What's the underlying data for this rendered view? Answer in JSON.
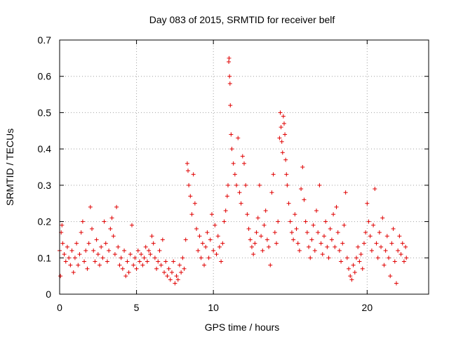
{
  "chart_data": {
    "type": "scatter",
    "title": "Day 083 of 2015, SRMTID for receiver belf",
    "xlabel": "GPS time / hours",
    "ylabel": "SRMTID / TECUs",
    "xlim": [
      0,
      24
    ],
    "ylim": [
      0,
      0.7
    ],
    "xticks": [
      0,
      5,
      10,
      20
    ],
    "xtick_labels": [
      "0",
      "5",
      "10",
      "20"
    ],
    "yticks": [
      0,
      0.1,
      0.2,
      0.3,
      0.4,
      0.5,
      0.6,
      0.7
    ],
    "ytick_labels": [
      "0",
      "0.1",
      "0.2",
      "0.3",
      "0.4",
      "0.5",
      "0.6",
      "0.7"
    ],
    "grid": true,
    "marker": "+",
    "color": "#e00000",
    "series": [
      {
        "name": "SRMTID",
        "points": [
          [
            0.0,
            0.12
          ],
          [
            0.05,
            0.05
          ],
          [
            0.1,
            0.17
          ],
          [
            0.15,
            0.19
          ],
          [
            0.2,
            0.14
          ],
          [
            0.3,
            0.11
          ],
          [
            0.4,
            0.09
          ],
          [
            0.5,
            0.13
          ],
          [
            0.6,
            0.1
          ],
          [
            0.7,
            0.08
          ],
          [
            0.8,
            0.12
          ],
          [
            0.9,
            0.06
          ],
          [
            1.0,
            0.1
          ],
          [
            1.1,
            0.14
          ],
          [
            1.2,
            0.08
          ],
          [
            1.3,
            0.11
          ],
          [
            1.4,
            0.17
          ],
          [
            1.5,
            0.2
          ],
          [
            1.6,
            0.09
          ],
          [
            1.7,
            0.12
          ],
          [
            1.8,
            0.07
          ],
          [
            1.9,
            0.14
          ],
          [
            2.0,
            0.24
          ],
          [
            2.1,
            0.18
          ],
          [
            2.2,
            0.12
          ],
          [
            2.3,
            0.09
          ],
          [
            2.4,
            0.15
          ],
          [
            2.5,
            0.11
          ],
          [
            2.6,
            0.08
          ],
          [
            2.7,
            0.13
          ],
          [
            2.8,
            0.1
          ],
          [
            2.9,
            0.2
          ],
          [
            3.0,
            0.14
          ],
          [
            3.1,
            0.09
          ],
          [
            3.2,
            0.12
          ],
          [
            3.3,
            0.18
          ],
          [
            3.4,
            0.21
          ],
          [
            3.5,
            0.16
          ],
          [
            3.6,
            0.11
          ],
          [
            3.7,
            0.24
          ],
          [
            3.8,
            0.13
          ],
          [
            3.9,
            0.08
          ],
          [
            4.0,
            0.1
          ],
          [
            4.1,
            0.07
          ],
          [
            4.2,
            0.12
          ],
          [
            4.3,
            0.05
          ],
          [
            4.4,
            0.09
          ],
          [
            4.5,
            0.06
          ],
          [
            4.6,
            0.11
          ],
          [
            4.7,
            0.19
          ],
          [
            4.8,
            0.08
          ],
          [
            4.9,
            0.1
          ],
          [
            5.0,
            0.07
          ],
          [
            5.1,
            0.12
          ],
          [
            5.2,
            0.09
          ],
          [
            5.3,
            0.11
          ],
          [
            5.4,
            0.08
          ],
          [
            5.5,
            0.1
          ],
          [
            5.6,
            0.13
          ],
          [
            5.7,
            0.09
          ],
          [
            5.8,
            0.12
          ],
          [
            5.9,
            0.11
          ],
          [
            6.0,
            0.16
          ],
          [
            6.1,
            0.14
          ],
          [
            6.2,
            0.1
          ],
          [
            6.3,
            0.07
          ],
          [
            6.4,
            0.09
          ],
          [
            6.5,
            0.12
          ],
          [
            6.6,
            0.08
          ],
          [
            6.7,
            0.15
          ],
          [
            6.8,
            0.06
          ],
          [
            6.9,
            0.09
          ],
          [
            7.0,
            0.05
          ],
          [
            7.1,
            0.07
          ],
          [
            7.2,
            0.04
          ],
          [
            7.3,
            0.06
          ],
          [
            7.4,
            0.09
          ],
          [
            7.5,
            0.03
          ],
          [
            7.6,
            0.05
          ],
          [
            7.7,
            0.04
          ],
          [
            7.8,
            0.08
          ],
          [
            7.9,
            0.06
          ],
          [
            8.0,
            0.1
          ],
          [
            8.1,
            0.07
          ],
          [
            8.2,
            0.15
          ],
          [
            8.3,
            0.36
          ],
          [
            8.35,
            0.34
          ],
          [
            8.4,
            0.3
          ],
          [
            8.5,
            0.27
          ],
          [
            8.6,
            0.22
          ],
          [
            8.7,
            0.33
          ],
          [
            8.8,
            0.25
          ],
          [
            8.9,
            0.18
          ],
          [
            9.0,
            0.12
          ],
          [
            9.1,
            0.16
          ],
          [
            9.2,
            0.1
          ],
          [
            9.3,
            0.14
          ],
          [
            9.4,
            0.08
          ],
          [
            9.5,
            0.13
          ],
          [
            9.6,
            0.17
          ],
          [
            9.7,
            0.1
          ],
          [
            9.8,
            0.15
          ],
          [
            9.9,
            0.22
          ],
          [
            10.0,
            0.12
          ],
          [
            10.1,
            0.19
          ],
          [
            10.2,
            0.11
          ],
          [
            10.3,
            0.16
          ],
          [
            10.4,
            0.13
          ],
          [
            10.5,
            0.09
          ],
          [
            10.6,
            0.14
          ],
          [
            10.7,
            0.2
          ],
          [
            10.8,
            0.23
          ],
          [
            10.9,
            0.27
          ],
          [
            10.95,
            0.3
          ],
          [
            11.0,
            0.64
          ],
          [
            11.02,
            0.65
          ],
          [
            11.05,
            0.6
          ],
          [
            11.08,
            0.58
          ],
          [
            11.1,
            0.52
          ],
          [
            11.15,
            0.44
          ],
          [
            11.2,
            0.4
          ],
          [
            11.3,
            0.36
          ],
          [
            11.4,
            0.33
          ],
          [
            11.5,
            0.3
          ],
          [
            11.6,
            0.43
          ],
          [
            11.7,
            0.28
          ],
          [
            11.8,
            0.25
          ],
          [
            11.9,
            0.38
          ],
          [
            12.0,
            0.36
          ],
          [
            12.1,
            0.3
          ],
          [
            12.2,
            0.22
          ],
          [
            12.3,
            0.18
          ],
          [
            12.4,
            0.15
          ],
          [
            12.5,
            0.13
          ],
          [
            12.6,
            0.11
          ],
          [
            12.7,
            0.14
          ],
          [
            12.8,
            0.17
          ],
          [
            12.9,
            0.21
          ],
          [
            13.0,
            0.3
          ],
          [
            13.1,
            0.16
          ],
          [
            13.2,
            0.12
          ],
          [
            13.3,
            0.19
          ],
          [
            13.4,
            0.23
          ],
          [
            13.5,
            0.15
          ],
          [
            13.6,
            0.13
          ],
          [
            13.7,
            0.08
          ],
          [
            13.8,
            0.28
          ],
          [
            13.9,
            0.33
          ],
          [
            14.0,
            0.17
          ],
          [
            14.1,
            0.14
          ],
          [
            14.2,
            0.2
          ],
          [
            14.3,
            0.43
          ],
          [
            14.35,
            0.5
          ],
          [
            14.4,
            0.46
          ],
          [
            14.45,
            0.42
          ],
          [
            14.5,
            0.39
          ],
          [
            14.55,
            0.49
          ],
          [
            14.6,
            0.47
          ],
          [
            14.65,
            0.44
          ],
          [
            14.7,
            0.37
          ],
          [
            14.75,
            0.33
          ],
          [
            14.8,
            0.3
          ],
          [
            14.9,
            0.25
          ],
          [
            15.0,
            0.2
          ],
          [
            15.1,
            0.17
          ],
          [
            15.2,
            0.15
          ],
          [
            15.3,
            0.22
          ],
          [
            15.4,
            0.18
          ],
          [
            15.5,
            0.14
          ],
          [
            15.6,
            0.12
          ],
          [
            15.7,
            0.29
          ],
          [
            15.8,
            0.35
          ],
          [
            15.9,
            0.26
          ],
          [
            16.0,
            0.2
          ],
          [
            16.1,
            0.17
          ],
          [
            16.2,
            0.13
          ],
          [
            16.3,
            0.1
          ],
          [
            16.4,
            0.15
          ],
          [
            16.5,
            0.19
          ],
          [
            16.6,
            0.12
          ],
          [
            16.7,
            0.23
          ],
          [
            16.8,
            0.17
          ],
          [
            16.9,
            0.3
          ],
          [
            17.0,
            0.14
          ],
          [
            17.1,
            0.11
          ],
          [
            17.2,
            0.16
          ],
          [
            17.3,
            0.2
          ],
          [
            17.4,
            0.13
          ],
          [
            17.5,
            0.1
          ],
          [
            17.6,
            0.18
          ],
          [
            17.7,
            0.15
          ],
          [
            17.8,
            0.22
          ],
          [
            17.9,
            0.13
          ],
          [
            18.0,
            0.24
          ],
          [
            18.1,
            0.17
          ],
          [
            18.2,
            0.12
          ],
          [
            18.3,
            0.09
          ],
          [
            18.4,
            0.14
          ],
          [
            18.5,
            0.19
          ],
          [
            18.6,
            0.28
          ],
          [
            18.7,
            0.1
          ],
          [
            18.8,
            0.07
          ],
          [
            18.9,
            0.05
          ],
          [
            19.0,
            0.04
          ],
          [
            19.1,
            0.08
          ],
          [
            19.2,
            0.06
          ],
          [
            19.3,
            0.1
          ],
          [
            19.4,
            0.13
          ],
          [
            19.5,
            0.09
          ],
          [
            19.6,
            0.11
          ],
          [
            19.7,
            0.07
          ],
          [
            19.8,
            0.14
          ],
          [
            19.9,
            0.17
          ],
          [
            20.0,
            0.25
          ],
          [
            20.1,
            0.2
          ],
          [
            20.2,
            0.16
          ],
          [
            20.3,
            0.12
          ],
          [
            20.4,
            0.19
          ],
          [
            20.5,
            0.29
          ],
          [
            20.6,
            0.14
          ],
          [
            20.7,
            0.1
          ],
          [
            20.8,
            0.17
          ],
          [
            20.9,
            0.13
          ],
          [
            21.0,
            0.21
          ],
          [
            21.1,
            0.08
          ],
          [
            21.2,
            0.12
          ],
          [
            21.3,
            0.16
          ],
          [
            21.4,
            0.1
          ],
          [
            21.5,
            0.05
          ],
          [
            21.6,
            0.14
          ],
          [
            21.7,
            0.18
          ],
          [
            21.8,
            0.09
          ],
          [
            21.9,
            0.03
          ],
          [
            22.0,
            0.12
          ],
          [
            22.1,
            0.16
          ],
          [
            22.2,
            0.11
          ],
          [
            22.3,
            0.14
          ],
          [
            22.4,
            0.09
          ],
          [
            22.5,
            0.13
          ],
          [
            22.55,
            0.1
          ]
        ]
      }
    ]
  }
}
